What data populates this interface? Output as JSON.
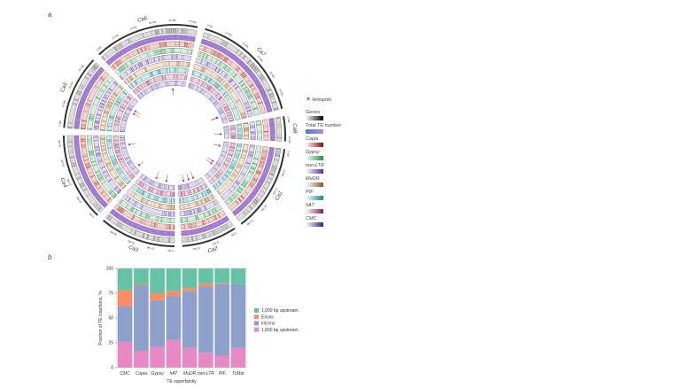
{
  "panels": {
    "a": "a",
    "b": "b"
  },
  "circos": {
    "chromosomes": [
      "Ca1",
      "Ca2",
      "Ca3",
      "Ca4",
      "Ca5",
      "Ca6",
      "Ca7",
      "Ca8"
    ],
    "tick_unit": "Mb",
    "hotspot_color": "#e8262a"
  },
  "legend_a": [
    {
      "label": "Hotspots",
      "italic": false,
      "colors": [
        "#e8262a"
      ]
    },
    {
      "label": "Genes",
      "italic": false,
      "colors": [
        "#ffffff",
        "#000000"
      ]
    },
    {
      "label": "Total TE number",
      "italic": false,
      "colors": [
        "#4f7fd0",
        "#b28ad8"
      ]
    },
    {
      "label": "Copia",
      "italic": true,
      "colors": [
        "#ffffff",
        "#8b0d0d"
      ]
    },
    {
      "label": "Gypsy",
      "italic": true,
      "colors": [
        "#ffffff",
        "#1a9641"
      ]
    },
    {
      "label": "non-LTR",
      "italic": true,
      "colors": [
        "#ffffff",
        "#5a2d9c"
      ]
    },
    {
      "label": "MuDR",
      "italic": true,
      "colors": [
        "#ffffff",
        "#8c5a1e"
      ]
    },
    {
      "label": "PIF",
      "italic": true,
      "colors": [
        "#ffffff",
        "#1f8a8a"
      ]
    },
    {
      "label": "hAT",
      "italic": true,
      "colors": [
        "#ffffff",
        "#8e1b5a"
      ]
    },
    {
      "label": "CMC",
      "italic": true,
      "colors": [
        "#ffffff",
        "#2a2a80"
      ]
    }
  ],
  "chart_data": {
    "type": "bar",
    "stacked": true,
    "categories": [
      "CMC",
      "Copia",
      "Gypsy",
      "hAT",
      "MuDR",
      "non-LTR",
      "PIF",
      "TcMar"
    ],
    "series": [
      {
        "name": "1,000 bp upstream",
        "color": "#e78ac3",
        "values": [
          26,
          17,
          21,
          28,
          20,
          15,
          12,
          20
        ]
      },
      {
        "name": "Introns",
        "color": "#8da0cb",
        "values": [
          36,
          66,
          47,
          44,
          57,
          67,
          72,
          64
        ]
      },
      {
        "name": "Exons",
        "color": "#fc8d62",
        "values": [
          16,
          1,
          7,
          5,
          3,
          3,
          1,
          0
        ]
      },
      {
        "name": "1,000 bp upstream",
        "color": "#66c2a5",
        "values": [
          22,
          16,
          25,
          23,
          20,
          15,
          15,
          16
        ]
      }
    ],
    "legend_order": [
      3,
      2,
      1,
      0
    ],
    "xlabel": "TE superfamily",
    "ylabel": "Fraction of TE insertions, %",
    "ylim": [
      0,
      100
    ],
    "yticks": [
      "0",
      "25",
      "50",
      "75",
      "100"
    ],
    "legend_position": "right"
  }
}
